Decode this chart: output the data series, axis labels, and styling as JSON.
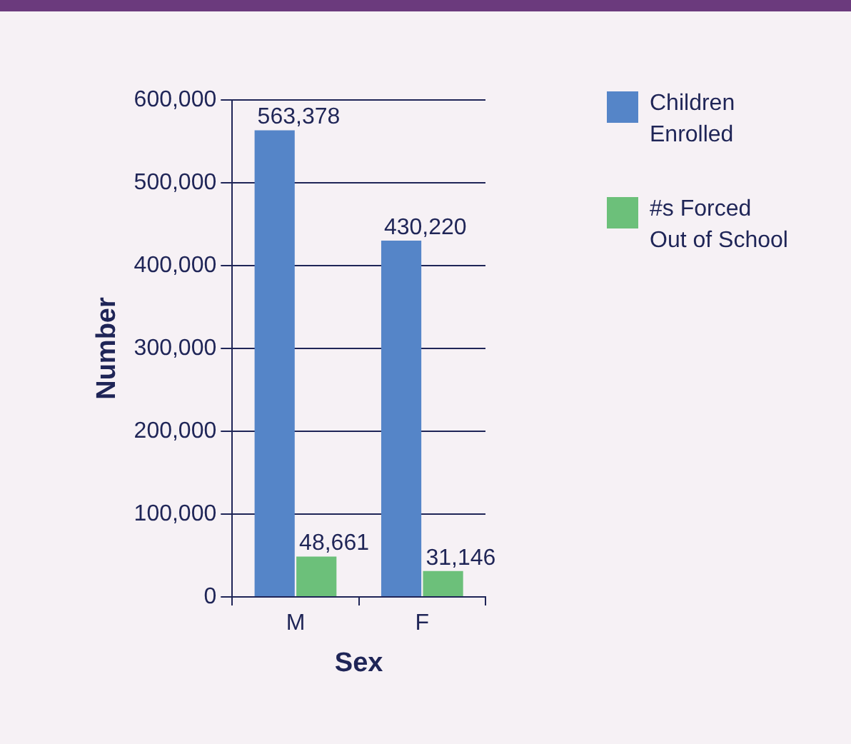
{
  "chart_data": {
    "type": "bar",
    "xlabel": "Sex",
    "ylabel": "Number",
    "categories": [
      "M",
      "F"
    ],
    "series": [
      {
        "name": "Children Enrolled",
        "color": "#5585c8",
        "values": [
          563378,
          430220
        ],
        "value_labels": [
          "563,378",
          "430,220"
        ]
      },
      {
        "name": "#s Forced Out of School",
        "color": "#6cc07a",
        "values": [
          48661,
          31146
        ],
        "value_labels": [
          "48,661",
          "31,146"
        ]
      }
    ],
    "ylim": [
      0,
      600000
    ],
    "yticks": [
      0,
      {
        "value": 100000,
        "label": "100,000"
      },
      {
        "value": 200000,
        "label": "200,000"
      },
      {
        "value": 300000,
        "label": "300,000"
      },
      {
        "value": 400000,
        "label": "400,000"
      },
      {
        "value": 500000,
        "label": "500,000"
      },
      {
        "value": 600000,
        "label": "600,000"
      }
    ],
    "grid": "y",
    "legend": "top right"
  }
}
